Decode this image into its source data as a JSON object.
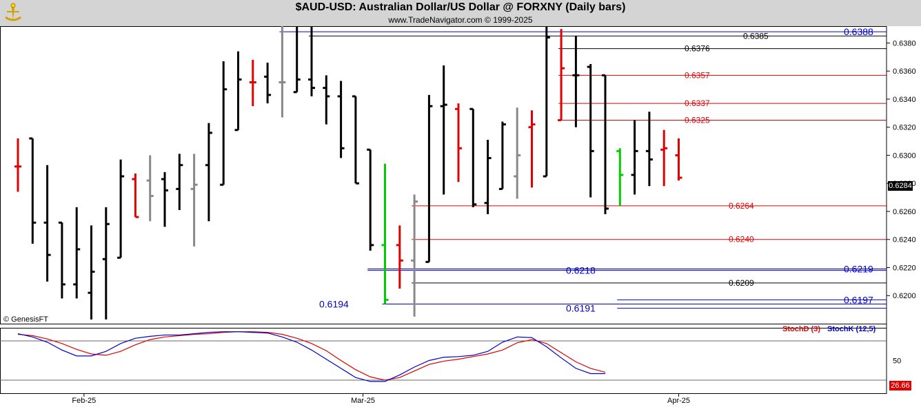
{
  "header": {
    "title": "$AUD-USD:  Australian Dollar/US Dollar @ FORXNY  (Daily bars)",
    "subtitle": "www.TradeNavigator.com © 1999-2025"
  },
  "copyright": "© GenesisFT",
  "colors": {
    "up": "#000000",
    "down": "#e00000",
    "neutral": "#888888",
    "green": "#00cc00",
    "blue_level": "#0000cc",
    "red_level": "#e00000",
    "black_level": "#000000",
    "stochD": "#e00000",
    "stochK": "#0000cc",
    "header_bg": "#d4d4d4"
  },
  "last_price_label": "0.6284",
  "chart_data": [
    {
      "type": "ohlc",
      "title": "$AUD-USD:  Australian Dollar/US Dollar @ FORXNY  (Daily bars)",
      "ylim": [
        0.618,
        0.6392
      ],
      "y_ticks": [
        "0.6380",
        "0.6360",
        "0.6340",
        "0.6320",
        "0.6300",
        "0.6280",
        "0.6260",
        "0.6240",
        "0.6220",
        "0.6200"
      ],
      "x_tick_labels": [
        {
          "label": "Feb-25",
          "bar": 4.5
        },
        {
          "label": "Mar-25",
          "bar": 23.5
        },
        {
          "label": "Apr-25",
          "bar": 45
        }
      ],
      "bars": [
        {
          "o": 0.6292,
          "h": 0.6312,
          "l": 0.6274,
          "c": 0.6292,
          "color": "down"
        },
        {
          "o": 0.6312,
          "h": 0.6312,
          "l": 0.6237,
          "c": 0.6252,
          "color": "up"
        },
        {
          "o": 0.6252,
          "h": 0.6293,
          "l": 0.621,
          "c": 0.6229,
          "color": "up"
        },
        {
          "o": 0.6252,
          "h": 0.6252,
          "l": 0.6198,
          "c": 0.6208,
          "color": "up"
        },
        {
          "o": 0.6208,
          "h": 0.6263,
          "l": 0.6198,
          "c": 0.6233,
          "color": "up"
        },
        {
          "o": 0.6202,
          "h": 0.625,
          "l": 0.6183,
          "c": 0.6217,
          "color": "up"
        },
        {
          "o": 0.6226,
          "h": 0.6263,
          "l": 0.6183,
          "c": 0.6251,
          "color": "up"
        },
        {
          "o": 0.6227,
          "h": 0.6297,
          "l": 0.6227,
          "c": 0.6285,
          "color": "up"
        },
        {
          "o": 0.6283,
          "h": 0.6287,
          "l": 0.6256,
          "c": 0.6256,
          "color": "down"
        },
        {
          "o": 0.6282,
          "h": 0.63,
          "l": 0.6253,
          "c": 0.6271,
          "color": "neutral"
        },
        {
          "o": 0.6283,
          "h": 0.6288,
          "l": 0.6249,
          "c": 0.6275,
          "color": "up"
        },
        {
          "o": 0.6276,
          "h": 0.6301,
          "l": 0.6261,
          "c": 0.6293,
          "color": "up"
        },
        {
          "o": 0.6276,
          "h": 0.6301,
          "l": 0.6235,
          "c": 0.6279,
          "color": "neutral"
        },
        {
          "o": 0.6293,
          "h": 0.6323,
          "l": 0.6253,
          "c": 0.6316,
          "color": "up"
        },
        {
          "o": 0.6279,
          "h": 0.6367,
          "l": 0.6279,
          "c": 0.6347,
          "color": "up"
        },
        {
          "o": 0.6318,
          "h": 0.6374,
          "l": 0.6318,
          "c": 0.6354,
          "color": "up"
        },
        {
          "o": 0.6352,
          "h": 0.6368,
          "l": 0.6335,
          "c": 0.6352,
          "color": "down"
        },
        {
          "o": 0.6356,
          "h": 0.6366,
          "l": 0.6337,
          "c": 0.6343,
          "color": "up"
        },
        {
          "o": 0.6352,
          "h": 0.6392,
          "l": 0.6327,
          "c": 0.6352,
          "color": "neutral"
        },
        {
          "o": 0.6345,
          "h": 0.6392,
          "l": 0.6345,
          "c": 0.6354,
          "color": "up"
        },
        {
          "o": 0.6354,
          "h": 0.6392,
          "l": 0.6342,
          "c": 0.6348,
          "color": "up"
        },
        {
          "o": 0.6348,
          "h": 0.6357,
          "l": 0.6322,
          "c": 0.6342,
          "color": "up"
        },
        {
          "o": 0.6342,
          "h": 0.6353,
          "l": 0.6298,
          "c": 0.6305,
          "color": "up"
        },
        {
          "o": 0.6342,
          "h": 0.6342,
          "l": 0.628,
          "c": 0.628,
          "color": "up"
        },
        {
          "o": 0.6304,
          "h": 0.6304,
          "l": 0.6232,
          "c": 0.6236,
          "color": "up"
        },
        {
          "o": 0.6236,
          "h": 0.6294,
          "l": 0.6194,
          "c": 0.6197,
          "color": "green"
        },
        {
          "o": 0.6236,
          "h": 0.625,
          "l": 0.6205,
          "c": 0.6225,
          "color": "down"
        },
        {
          "o": 0.6225,
          "h": 0.6272,
          "l": 0.6185,
          "c": 0.6267,
          "color": "neutral"
        },
        {
          "o": 0.6224,
          "h": 0.6343,
          "l": 0.6224,
          "c": 0.6335,
          "color": "up"
        },
        {
          "o": 0.6335,
          "h": 0.6364,
          "l": 0.6272,
          "c": 0.6336,
          "color": "up"
        },
        {
          "o": 0.6333,
          "h": 0.6337,
          "l": 0.6281,
          "c": 0.6305,
          "color": "down"
        },
        {
          "o": 0.6333,
          "h": 0.6333,
          "l": 0.6263,
          "c": 0.6265,
          "color": "up"
        },
        {
          "o": 0.6266,
          "h": 0.6311,
          "l": 0.6258,
          "c": 0.6298,
          "color": "up"
        },
        {
          "o": 0.6276,
          "h": 0.6324,
          "l": 0.6276,
          "c": 0.6322,
          "color": "up"
        },
        {
          "o": 0.6285,
          "h": 0.6334,
          "l": 0.6269,
          "c": 0.63,
          "color": "neutral"
        },
        {
          "o": 0.632,
          "h": 0.6332,
          "l": 0.6277,
          "c": 0.6322,
          "color": "down"
        },
        {
          "o": 0.6285,
          "h": 0.6392,
          "l": 0.6285,
          "c": 0.6384,
          "color": "up"
        },
        {
          "o": 0.6325,
          "h": 0.639,
          "l": 0.6325,
          "c": 0.6362,
          "color": "down"
        },
        {
          "o": 0.6357,
          "h": 0.6385,
          "l": 0.632,
          "c": 0.6357,
          "color": "up"
        },
        {
          "o": 0.6363,
          "h": 0.6365,
          "l": 0.627,
          "c": 0.6303,
          "color": "up"
        },
        {
          "o": 0.6357,
          "h": 0.6357,
          "l": 0.6258,
          "c": 0.6262,
          "color": "up"
        },
        {
          "o": 0.6303,
          "h": 0.6305,
          "l": 0.6264,
          "c": 0.6286,
          "color": "green"
        },
        {
          "o": 0.6286,
          "h": 0.6325,
          "l": 0.6272,
          "c": 0.6303,
          "color": "up"
        },
        {
          "o": 0.6303,
          "h": 0.6331,
          "l": 0.6278,
          "c": 0.6297,
          "color": "up"
        },
        {
          "o": 0.6304,
          "h": 0.6318,
          "l": 0.6278,
          "c": 0.6305,
          "color": "down"
        },
        {
          "o": 0.63,
          "h": 0.6312,
          "l": 0.6282,
          "c": 0.6284,
          "color": "down"
        }
      ],
      "levels": [
        {
          "value": 0.6388,
          "label": "0.6388",
          "color": "blue",
          "from_bar": 18,
          "label_pos": "right-axis"
        },
        {
          "value": 0.6385,
          "label": "0.6385",
          "color": "black",
          "from_bar": 20,
          "label_pos": "mid"
        },
        {
          "value": 0.6376,
          "label": "0.6376",
          "color": "black",
          "from_bar": 37,
          "label_pos": "mid2"
        },
        {
          "value": 0.6357,
          "label": "0.6357",
          "color": "red",
          "from_bar": 37,
          "label_pos": "mid2"
        },
        {
          "value": 0.6337,
          "label": "0.6337",
          "color": "red",
          "from_bar": 37,
          "label_pos": "mid2"
        },
        {
          "value": 0.6325,
          "label": "0.6325",
          "color": "red",
          "from_bar": 37,
          "label_pos": "mid2"
        },
        {
          "value": 0.6264,
          "label": "0.6264",
          "color": "red",
          "from_bar": 27,
          "label_pos": "mid3"
        },
        {
          "value": 0.624,
          "label": "0.6240",
          "color": "red",
          "from_bar": 27,
          "label_pos": "mid3"
        },
        {
          "value": 0.6219,
          "label": "0.6219",
          "color": "blue",
          "from_bar": 24,
          "label_pos": "right-axis"
        },
        {
          "value": 0.6218,
          "label": "0.6218",
          "color": "blue",
          "from_bar": 24,
          "label_pos": "mid4"
        },
        {
          "value": 0.6209,
          "label": "0.6209",
          "color": "black",
          "from_bar": 27,
          "label_pos": "mid3"
        },
        {
          "value": 0.6197,
          "label": "0.6197",
          "color": "blue",
          "from_bar": 41,
          "label_pos": "right-axis"
        },
        {
          "value": 0.6194,
          "label": "0.6194",
          "color": "blue",
          "from_bar": 25,
          "label_pos": "left"
        },
        {
          "value": 0.6191,
          "label": "0.6191",
          "color": "blue",
          "from_bar": 41,
          "label_pos": "mid4"
        }
      ]
    },
    {
      "type": "line",
      "title": "Stochastic",
      "ylim": [
        0,
        100
      ],
      "y_ticks": [
        "50"
      ],
      "reference_lines": [
        80,
        20
      ],
      "last_value_label": "26.66",
      "series": [
        {
          "name": "StochD (3)",
          "values": [
            90,
            88,
            83,
            76,
            67,
            60,
            58,
            64,
            74,
            82,
            86,
            88,
            90,
            91,
            93,
            94,
            94,
            93,
            90,
            84,
            76,
            65,
            50,
            36,
            25,
            20,
            24,
            34,
            44,
            49,
            52,
            56,
            60,
            66,
            77,
            82,
            76,
            62,
            48,
            38,
            32
          ],
          "start_bar": 0
        },
        {
          "name": "StochK (12,5)",
          "values": [
            91,
            86,
            78,
            66,
            57,
            57,
            64,
            76,
            84,
            87,
            89,
            89,
            91,
            93,
            94,
            94,
            93,
            92,
            86,
            78,
            66,
            52,
            38,
            24,
            18,
            18,
            28,
            40,
            50,
            55,
            56,
            58,
            64,
            78,
            86,
            85,
            71,
            54,
            38,
            30,
            30
          ],
          "start_bar": 0
        }
      ]
    }
  ],
  "indicator_legend": {
    "stochD": "StochD (3)",
    "stochK": "StochK (12,5)"
  }
}
